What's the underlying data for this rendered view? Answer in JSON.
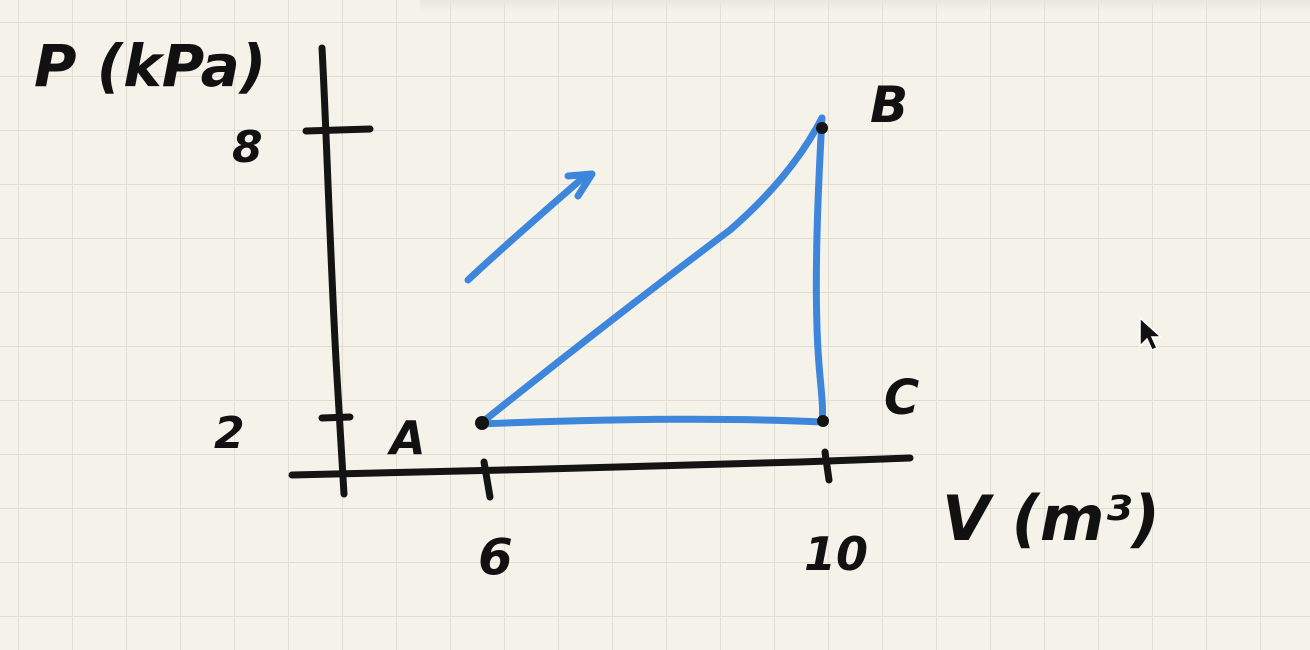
{
  "diagram": {
    "y_axis_label": "P (kPa)",
    "x_axis_label": "V (m³)",
    "y_ticks": [
      "8",
      "2"
    ],
    "x_ticks": [
      "6",
      "10"
    ],
    "points": [
      {
        "label": "A",
        "V": 6,
        "P": 2
      },
      {
        "label": "B",
        "V": 10,
        "P": 8
      },
      {
        "label": "C",
        "V": 10,
        "P": 2
      }
    ],
    "direction_arrow": "arrow-up-right",
    "cycle": [
      "A",
      "B",
      "C",
      "A"
    ],
    "ink_color": "#141414",
    "path_color": "#3d86dc"
  }
}
